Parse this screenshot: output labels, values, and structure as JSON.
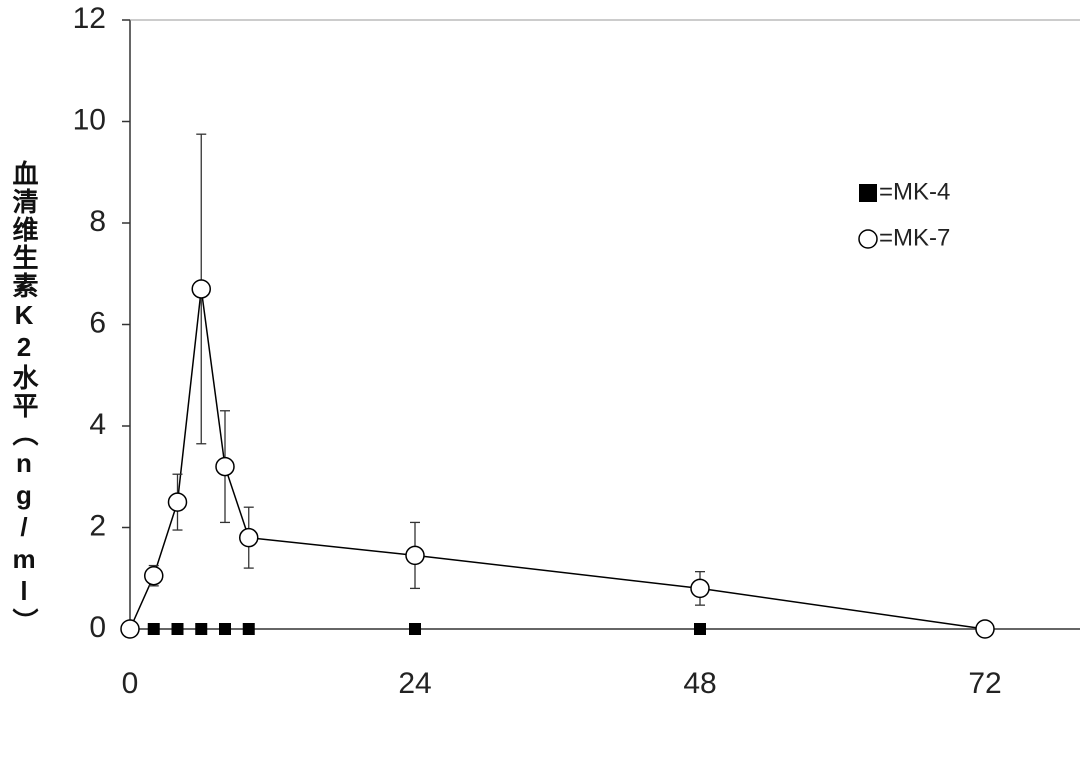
{
  "chart_data": {
    "type": "line",
    "ylabel": "血清维生素K2水平（ng/ml）",
    "xlim": [
      0,
      80
    ],
    "xticks": [
      0,
      24,
      48,
      72
    ],
    "ylim": [
      0,
      12
    ],
    "yticks": [
      0,
      2,
      4,
      6,
      8,
      10,
      12
    ],
    "legend": "upper right",
    "series": [
      {
        "name": "=MK-4",
        "color": "#000000",
        "marker": "filled-square",
        "line": false,
        "x": [
          2,
          4,
          6,
          8,
          10,
          24,
          48
        ],
        "values": [
          0,
          0,
          0,
          0,
          0,
          0,
          0
        ]
      },
      {
        "name": "=MK-7",
        "color": "#000000",
        "marker": "open-circle",
        "line": true,
        "x": [
          0,
          2,
          4,
          6,
          8,
          10,
          24,
          48,
          72
        ],
        "values": [
          0,
          1.05,
          2.5,
          6.7,
          3.2,
          1.8,
          1.45,
          0.8,
          0
        ],
        "errors": [
          0,
          0.2,
          0.55,
          3.05,
          1.1,
          0.6,
          0.65,
          0.33,
          0
        ]
      }
    ]
  }
}
